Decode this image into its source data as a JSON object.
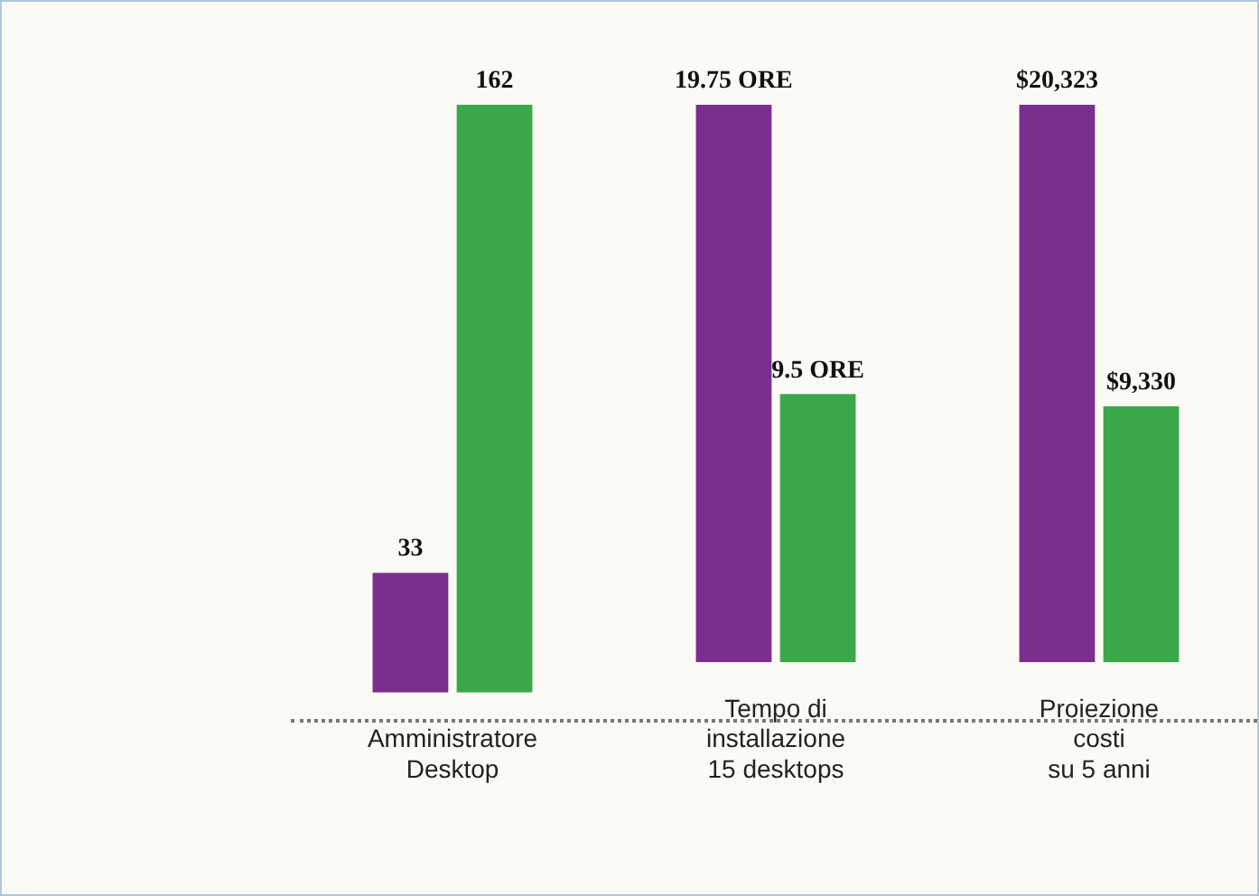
{
  "chart_data": [
    {
      "type": "bar",
      "categories": [
        "Amministratore\nDesktop"
      ],
      "ylim": [
        0,
        162
      ],
      "tick_labels": false,
      "legend": false,
      "series": [
        {
          "color": "#7a2e8e",
          "values": [
            33
          ],
          "value_labels": [
            "33"
          ]
        },
        {
          "color": "#3aa84a",
          "values": [
            162
          ],
          "value_labels": [
            "162"
          ]
        }
      ]
    },
    {
      "type": "bar",
      "categories": [
        "Tempo di\ninstallazione\n15 desktops"
      ],
      "ylim": [
        0,
        19.75
      ],
      "tick_labels": false,
      "legend": false,
      "series": [
        {
          "color": "#7a2e8e",
          "values": [
            19.75
          ],
          "value_labels": [
            "19.75 ORE"
          ]
        },
        {
          "color": "#3aa84a",
          "values": [
            9.5
          ],
          "value_labels": [
            "9.5 ORE"
          ]
        }
      ]
    },
    {
      "type": "bar",
      "categories": [
        "Proiezione\ncosti\nsu 5 anni"
      ],
      "ylim": [
        0,
        20323
      ],
      "tick_labels": false,
      "legend": false,
      "series": [
        {
          "color": "#7a2e8e",
          "values": [
            20323
          ],
          "value_labels": [
            "$20,323"
          ]
        },
        {
          "color": "#3aa84a",
          "values": [
            9330
          ],
          "value_labels": [
            "$9,330"
          ]
        }
      ]
    }
  ]
}
